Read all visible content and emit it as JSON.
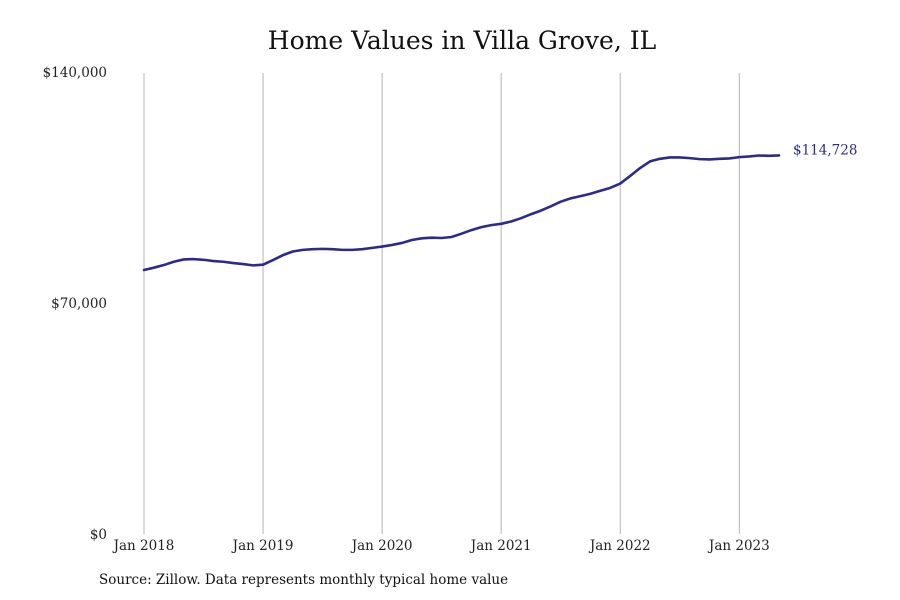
{
  "chart_data": {
    "type": "line",
    "title": "Home Values in Villa Grove, IL",
    "xlabel": "",
    "ylabel": "",
    "x_range": [
      "2018-01",
      "2023-05"
    ],
    "ylim": [
      0,
      140000
    ],
    "y_ticks": [
      {
        "value": 0,
        "label": "$0"
      },
      {
        "value": 70000,
        "label": "$70,000"
      },
      {
        "value": 140000,
        "label": "$140,000"
      }
    ],
    "x_ticks": [
      {
        "date": "2018-01",
        "label": "Jan 2018"
      },
      {
        "date": "2019-01",
        "label": "Jan 2019"
      },
      {
        "date": "2020-01",
        "label": "Jan 2020"
      },
      {
        "date": "2021-01",
        "label": "Jan 2021"
      },
      {
        "date": "2022-01",
        "label": "Jan 2022"
      },
      {
        "date": "2023-01",
        "label": "Jan 2023"
      }
    ],
    "grid": "vertical",
    "line_color": "#2e2a8c",
    "end_label": "$114,728",
    "series": [
      {
        "points": [
          [
            "2018-01",
            80000
          ],
          [
            "2018-02",
            80700
          ],
          [
            "2018-03",
            81500
          ],
          [
            "2018-04",
            82500
          ],
          [
            "2018-05",
            83200
          ],
          [
            "2018-06",
            83300
          ],
          [
            "2018-07",
            83100
          ],
          [
            "2018-08",
            82700
          ],
          [
            "2018-09",
            82500
          ],
          [
            "2018-10",
            82100
          ],
          [
            "2018-11",
            81800
          ],
          [
            "2018-12",
            81400
          ],
          [
            "2019-01",
            81600
          ],
          [
            "2019-02",
            83000
          ],
          [
            "2019-03",
            84500
          ],
          [
            "2019-04",
            85600
          ],
          [
            "2019-05",
            86100
          ],
          [
            "2019-06",
            86300
          ],
          [
            "2019-07",
            86400
          ],
          [
            "2019-08",
            86300
          ],
          [
            "2019-09",
            86100
          ],
          [
            "2019-10",
            86100
          ],
          [
            "2019-11",
            86300
          ],
          [
            "2019-12",
            86700
          ],
          [
            "2020-01",
            87100
          ],
          [
            "2020-02",
            87600
          ],
          [
            "2020-03",
            88200
          ],
          [
            "2020-04",
            89100
          ],
          [
            "2020-05",
            89600
          ],
          [
            "2020-06",
            89800
          ],
          [
            "2020-07",
            89700
          ],
          [
            "2020-08",
            90000
          ],
          [
            "2020-09",
            91000
          ],
          [
            "2020-10",
            92100
          ],
          [
            "2020-11",
            93000
          ],
          [
            "2020-12",
            93600
          ],
          [
            "2021-01",
            94000
          ],
          [
            "2021-02",
            94700
          ],
          [
            "2021-03",
            95700
          ],
          [
            "2021-04",
            96900
          ],
          [
            "2021-05",
            98000
          ],
          [
            "2021-06",
            99300
          ],
          [
            "2021-07",
            100700
          ],
          [
            "2021-08",
            101700
          ],
          [
            "2021-09",
            102400
          ],
          [
            "2021-10",
            103100
          ],
          [
            "2021-11",
            104000
          ],
          [
            "2021-12",
            104900
          ],
          [
            "2022-01",
            106200
          ],
          [
            "2022-02",
            108500
          ],
          [
            "2022-03",
            110900
          ],
          [
            "2022-04",
            112900
          ],
          [
            "2022-05",
            113700
          ],
          [
            "2022-06",
            114100
          ],
          [
            "2022-07",
            114100
          ],
          [
            "2022-08",
            113900
          ],
          [
            "2022-09",
            113600
          ],
          [
            "2022-10",
            113500
          ],
          [
            "2022-11",
            113700
          ],
          [
            "2022-12",
            113800
          ],
          [
            "2023-01",
            114200
          ],
          [
            "2023-02",
            114400
          ],
          [
            "2023-03",
            114700
          ],
          [
            "2023-04",
            114600
          ],
          [
            "2023-05",
            114728
          ]
        ]
      }
    ]
  },
  "source_text": "Source: Zillow. Data represents monthly typical home value"
}
